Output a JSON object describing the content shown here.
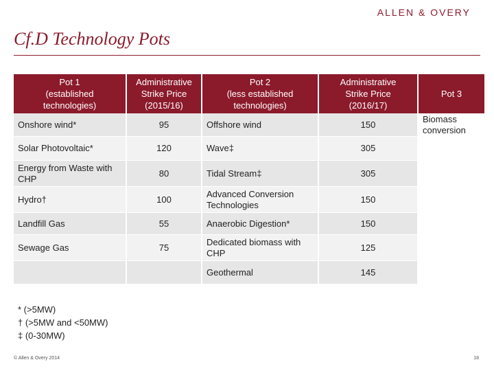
{
  "header": {
    "logo_text": "ALLEN & OVERY",
    "title": "Cf.D Technology Pots"
  },
  "table": {
    "headers": [
      "Pot 1\n(established\ntechnologies)",
      "Administrative\nStrike Price\n(2015/16)",
      "Pot 2\n(less established\ntechnologies)",
      "Administrative\nStrike Price\n(2016/17)",
      "Pot 3"
    ],
    "rows": [
      {
        "pot1": "Onshore wind*",
        "price1": "95",
        "pot2": "Offshore wind",
        "price2": "150",
        "pot3": "Biomass\nconversion"
      },
      {
        "pot1": "Solar Photovoltaic*",
        "price1": "120",
        "pot2": "Wave‡",
        "price2": "305",
        "pot3": ""
      },
      {
        "pot1": "Energy from Waste with\nCHP",
        "price1": "80",
        "pot2": "Tidal Stream‡",
        "price2": "305",
        "pot3": ""
      },
      {
        "pot1": "Hydro†",
        "price1": "100",
        "pot2": "Advanced Conversion\nTechnologies",
        "price2": "150",
        "pot3": ""
      },
      {
        "pot1": "Landfill Gas",
        "price1": "55",
        "pot2": "Anaerobic Digestion*",
        "price2": "150",
        "pot3": ""
      },
      {
        "pot1": "Sewage Gas",
        "price1": "75",
        "pot2": "Dedicated biomass with\nCHP",
        "price2": "125",
        "pot3": ""
      },
      {
        "pot1": "",
        "price1": "",
        "pot2": "Geothermal",
        "price2": "145",
        "pot3": ""
      }
    ]
  },
  "footnotes": [
    "* (>5MW)",
    "† (>5MW and <50MW)",
    "‡ (0-30MW)"
  ],
  "footer": {
    "copyright": "© Allen & Overy 2014",
    "page_number": "18"
  },
  "colors": {
    "brand": "#8b1a2b",
    "row_dark": "#e6e6e6",
    "row_light": "#f2f2f2"
  }
}
